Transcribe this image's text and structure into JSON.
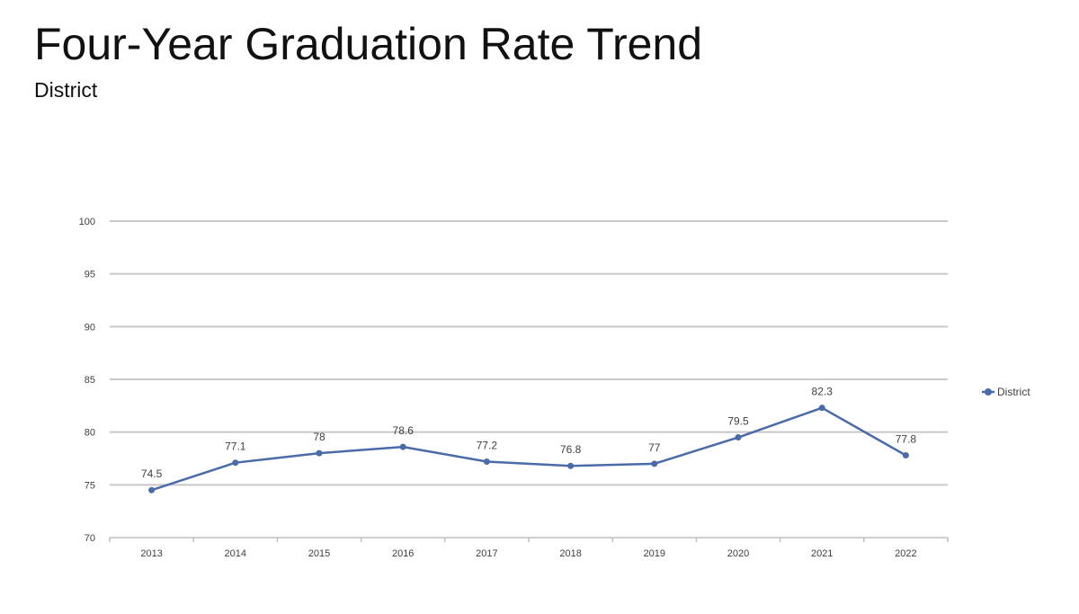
{
  "page": {
    "title": "Four-Year Graduation Rate Trend",
    "subtitle": "District"
  },
  "chart_data": {
    "type": "line",
    "title": "",
    "xlabel": "",
    "ylabel": "",
    "categories": [
      "2013",
      "2014",
      "2015",
      "2016",
      "2017",
      "2018",
      "2019",
      "2020",
      "2021",
      "2022"
    ],
    "series": [
      {
        "name": "District",
        "values": [
          74.5,
          77.1,
          78,
          78.6,
          77.2,
          76.8,
          77,
          79.5,
          82.3,
          77.8
        ],
        "labels": [
          "74.5",
          "77.1",
          "78",
          "78.6",
          "77.2",
          "76.8",
          "77",
          "79.5",
          "82.3",
          "77.8"
        ],
        "color": "#4a6aa8"
      }
    ],
    "ylim": [
      70,
      100
    ],
    "yticks": [
      70,
      75,
      80,
      85,
      90,
      95,
      100
    ],
    "grid": true,
    "legend_position": "right",
    "colors": {
      "gridline": "#c8c8c8",
      "axis": "#bfbfbf",
      "tick_text": "#404040"
    }
  }
}
